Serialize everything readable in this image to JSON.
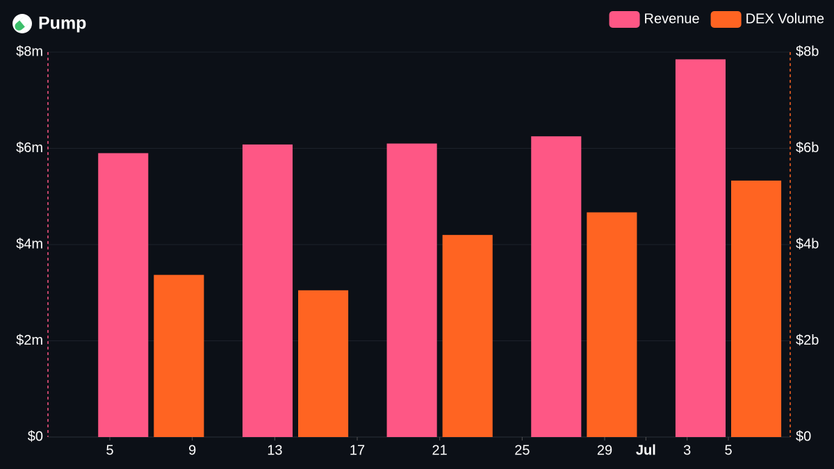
{
  "chart_data": {
    "type": "bar",
    "title": "Pump",
    "x": [
      "06-07",
      "06-14",
      "06-21",
      "06-28",
      "07-05"
    ],
    "xlim": [
      "06-02",
      "07-08"
    ],
    "xticks": [
      {
        "value": "06-05",
        "label": "5"
      },
      {
        "value": "06-09",
        "label": "9"
      },
      {
        "value": "06-13",
        "label": "13"
      },
      {
        "value": "06-17",
        "label": "17"
      },
      {
        "value": "06-21",
        "label": "21"
      },
      {
        "value": "06-25",
        "label": "25"
      },
      {
        "value": "06-29",
        "label": "29"
      },
      {
        "value": "07-01",
        "label": "Jul"
      },
      {
        "value": "07-03",
        "label": "3"
      },
      {
        "value": "07-05",
        "label": "5"
      }
    ],
    "series": [
      {
        "name": "Revenue",
        "color": "#fe5785",
        "values": [
          5900000,
          6080000,
          6100000,
          6250000,
          7850000
        ]
      },
      {
        "name": "DEX Volume",
        "color": "#ff6422",
        "axis": "y2",
        "values": [
          3370000000,
          3050000000,
          4200000000,
          4670000000,
          5330000000
        ]
      }
    ],
    "ylim": [
      0,
      8000000
    ],
    "yticks": [
      {
        "value": 0,
        "label": "$0"
      },
      {
        "value": 2000000,
        "label": "$2m"
      },
      {
        "value": 4000000,
        "label": "$4m"
      },
      {
        "value": 6000000,
        "label": "$6m"
      },
      {
        "value": 8000000,
        "label": "$8m"
      }
    ],
    "y2lim": [
      0,
      8000000000
    ],
    "y2ticks": [
      {
        "value": 0,
        "label": "$0"
      },
      {
        "value": 2000000000,
        "label": "$2b"
      },
      {
        "value": 4000000000,
        "label": "$4b"
      },
      {
        "value": 6000000000,
        "label": "$6b"
      },
      {
        "value": 8000000000,
        "label": "$8b"
      }
    ],
    "grid": true,
    "legend": "top-right"
  }
}
